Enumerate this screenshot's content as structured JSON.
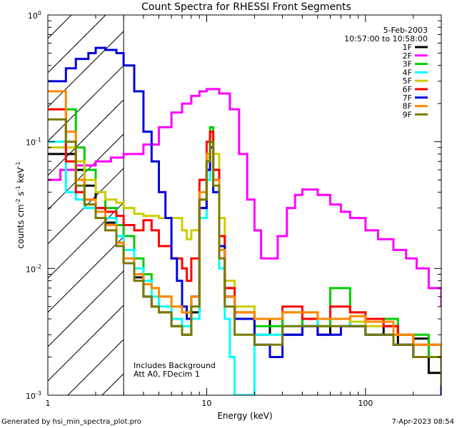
{
  "chart_data": {
    "type": "line",
    "title": "Count Spectra for RHESSI Front Segments",
    "xlabel": "Energy (keV)",
    "ylabel": "counts cm",
    "ylabel_sup1": "-2",
    "ylabel_mid": " s",
    "ylabel_sup2": "-1",
    "ylabel_mid2": " keV",
    "ylabel_sup3": "-1",
    "x_scale": "log",
    "y_scale": "log",
    "xlim": [
      1,
      300
    ],
    "ylim": [
      0.001,
      1
    ],
    "x_ticks": [
      {
        "v": 1,
        "label": "1"
      },
      {
        "v": 10,
        "label": "10"
      },
      {
        "v": 100,
        "label": "100"
      }
    ],
    "y_ticks": [
      {
        "v": 0.001,
        "base": "10",
        "exp": "-3"
      },
      {
        "v": 0.01,
        "base": "10",
        "exp": "-2"
      },
      {
        "v": 0.1,
        "base": "10",
        "exp": "-1"
      },
      {
        "v": 1,
        "base": "10",
        "exp": "0"
      }
    ],
    "legend_date": "5-Feb-2003",
    "legend_time": "10:57:00 to 10:58:00",
    "legend_position": "top-right",
    "note_line1": "Includes Background",
    "note_line2": "Att A0, FDecim 1",
    "shaded_region_xmax": 3,
    "footer_left": "Generated by hsi_min_spectra_plot.pro",
    "footer_right": "7-Apr-2023 08:54",
    "series": [
      {
        "name": "1F",
        "color": "#000000",
        "points": [
          [
            1.0,
            0.08
          ],
          [
            1.3,
            0.08
          ],
          [
            1.5,
            0.06
          ],
          [
            1.7,
            0.045
          ],
          [
            2.0,
            0.03
          ],
          [
            2.3,
            0.023
          ],
          [
            2.7,
            0.016
          ],
          [
            3.0,
            0.011
          ],
          [
            3.5,
            0.0085
          ],
          [
            4.0,
            0.006
          ],
          [
            4.5,
            0.005
          ],
          [
            5.0,
            0.0045
          ],
          [
            6.0,
            0.0035
          ],
          [
            7.0,
            0.003
          ],
          [
            8.0,
            0.0045
          ],
          [
            9.0,
            0.03
          ],
          [
            10.0,
            0.06
          ],
          [
            10.5,
            0.1
          ],
          [
            11.0,
            0.05
          ],
          [
            12.0,
            0.015
          ],
          [
            13.0,
            0.006
          ],
          [
            15.0,
            0.004
          ],
          [
            20.0,
            0.003
          ],
          [
            25.0,
            0.004
          ],
          [
            30.0,
            0.003
          ],
          [
            40.0,
            0.004
          ],
          [
            50.0,
            0.003
          ],
          [
            60.0,
            0.004
          ],
          [
            80.0,
            0.0035
          ],
          [
            100.0,
            0.003
          ],
          [
            130.0,
            0.0035
          ],
          [
            160.0,
            0.0025
          ],
          [
            200.0,
            0.0028
          ],
          [
            250.0,
            0.0015
          ],
          [
            300.0,
            0.001
          ]
        ]
      },
      {
        "name": "2F",
        "color": "#ff00ff",
        "points": [
          [
            1.0,
            0.05
          ],
          [
            1.2,
            0.06
          ],
          [
            1.5,
            0.065
          ],
          [
            2.0,
            0.07
          ],
          [
            2.5,
            0.075
          ],
          [
            3.0,
            0.08
          ],
          [
            4.0,
            0.095
          ],
          [
            5.0,
            0.13
          ],
          [
            6.0,
            0.17
          ],
          [
            7.0,
            0.2
          ],
          [
            8.0,
            0.23
          ],
          [
            9.0,
            0.25
          ],
          [
            10.0,
            0.26
          ],
          [
            11.0,
            0.26
          ],
          [
            12.0,
            0.24
          ],
          [
            14.0,
            0.18
          ],
          [
            16.0,
            0.08
          ],
          [
            18.0,
            0.035
          ],
          [
            20.0,
            0.02
          ],
          [
            22.0,
            0.012
          ],
          [
            25.0,
            0.012
          ],
          [
            28.0,
            0.018
          ],
          [
            32.0,
            0.03
          ],
          [
            36.0,
            0.038
          ],
          [
            40.0,
            0.042
          ],
          [
            50.0,
            0.038
          ],
          [
            60.0,
            0.032
          ],
          [
            70.0,
            0.028
          ],
          [
            80.0,
            0.025
          ],
          [
            100.0,
            0.02
          ],
          [
            120.0,
            0.017
          ],
          [
            150.0,
            0.014
          ],
          [
            180.0,
            0.012
          ],
          [
            210.0,
            0.01
          ],
          [
            250.0,
            0.007
          ],
          [
            300.0,
            0.005
          ]
        ]
      },
      {
        "name": "3F",
        "color": "#00cc00",
        "points": [
          [
            1.0,
            0.18
          ],
          [
            1.3,
            0.18
          ],
          [
            1.5,
            0.09
          ],
          [
            1.7,
            0.06
          ],
          [
            2.0,
            0.04
          ],
          [
            2.3,
            0.03
          ],
          [
            2.7,
            0.022
          ],
          [
            3.0,
            0.018
          ],
          [
            3.5,
            0.012
          ],
          [
            4.0,
            0.009
          ],
          [
            4.5,
            0.007
          ],
          [
            5.0,
            0.006
          ],
          [
            6.0,
            0.005
          ],
          [
            7.0,
            0.0045
          ],
          [
            8.0,
            0.006
          ],
          [
            9.0,
            0.035
          ],
          [
            10.0,
            0.07
          ],
          [
            10.5,
            0.13
          ],
          [
            11.0,
            0.06
          ],
          [
            12.0,
            0.018
          ],
          [
            13.0,
            0.007
          ],
          [
            15.0,
            0.0045
          ],
          [
            20.0,
            0.0035
          ],
          [
            30.0,
            0.0045
          ],
          [
            40.0,
            0.0035
          ],
          [
            60.0,
            0.007
          ],
          [
            80.0,
            0.0045
          ],
          [
            100.0,
            0.004
          ],
          [
            130.0,
            0.004
          ],
          [
            160.0,
            0.003
          ],
          [
            200.0,
            0.003
          ],
          [
            250.0,
            0.002
          ],
          [
            300.0,
            0.0015
          ]
        ]
      },
      {
        "name": "4F",
        "color": "#00ffff",
        "points": [
          [
            1.0,
            0.1
          ],
          [
            1.3,
            0.04
          ],
          [
            1.5,
            0.035
          ],
          [
            1.7,
            0.03
          ],
          [
            2.0,
            0.028
          ],
          [
            2.3,
            0.025
          ],
          [
            2.7,
            0.018
          ],
          [
            3.0,
            0.014
          ],
          [
            3.5,
            0.01
          ],
          [
            4.0,
            0.008
          ],
          [
            4.5,
            0.006
          ],
          [
            5.0,
            0.005
          ],
          [
            6.0,
            0.004
          ],
          [
            7.0,
            0.0035
          ],
          [
            8.0,
            0.004
          ],
          [
            9.0,
            0.025
          ],
          [
            10.0,
            0.05
          ],
          [
            10.5,
            0.09
          ],
          [
            11.0,
            0.04
          ],
          [
            12.0,
            0.01
          ],
          [
            13.0,
            0.004
          ],
          [
            14.0,
            0.002
          ],
          [
            15.0,
            0.001
          ],
          [
            20.0,
            0.003
          ],
          [
            30.0,
            0.0035
          ],
          [
            50.0,
            0.004
          ],
          [
            80.0,
            0.0035
          ],
          [
            100.0,
            0.003
          ],
          [
            150.0,
            0.003
          ],
          [
            200.0,
            0.002
          ],
          [
            300.0,
            0.0012
          ]
        ]
      },
      {
        "name": "5F",
        "color": "#cccc00",
        "points": [
          [
            1.0,
            0.09
          ],
          [
            1.3,
            0.09
          ],
          [
            1.5,
            0.07
          ],
          [
            1.7,
            0.05
          ],
          [
            2.0,
            0.04
          ],
          [
            2.3,
            0.035
          ],
          [
            2.7,
            0.033
          ],
          [
            3.0,
            0.03
          ],
          [
            3.5,
            0.027
          ],
          [
            4.0,
            0.026
          ],
          [
            4.5,
            0.026
          ],
          [
            5.0,
            0.025
          ],
          [
            6.0,
            0.025
          ],
          [
            7.0,
            0.02
          ],
          [
            7.5,
            0.017
          ],
          [
            8.0,
            0.02
          ],
          [
            9.0,
            0.035
          ],
          [
            10.0,
            0.075
          ],
          [
            10.5,
            0.11
          ],
          [
            11.0,
            0.08
          ],
          [
            12.0,
            0.025
          ],
          [
            13.0,
            0.008
          ],
          [
            15.0,
            0.005
          ],
          [
            20.0,
            0.004
          ],
          [
            30.0,
            0.0045
          ],
          [
            50.0,
            0.004
          ],
          [
            80.0,
            0.0038
          ],
          [
            100.0,
            0.0035
          ],
          [
            150.0,
            0.003
          ],
          [
            200.0,
            0.0025
          ],
          [
            300.0,
            0.0015
          ]
        ]
      },
      {
        "name": "6F",
        "color": "#ff0000",
        "points": [
          [
            1.0,
            0.18
          ],
          [
            1.3,
            0.07
          ],
          [
            1.5,
            0.04
          ],
          [
            1.7,
            0.035
          ],
          [
            2.0,
            0.03
          ],
          [
            2.3,
            0.028
          ],
          [
            2.7,
            0.026
          ],
          [
            3.0,
            0.022
          ],
          [
            3.5,
            0.02
          ],
          [
            4.0,
            0.024
          ],
          [
            4.5,
            0.02
          ],
          [
            5.0,
            0.015
          ],
          [
            6.0,
            0.012
          ],
          [
            7.0,
            0.01
          ],
          [
            7.5,
            0.008
          ],
          [
            8.0,
            0.012
          ],
          [
            9.0,
            0.05
          ],
          [
            10.0,
            0.1
          ],
          [
            10.5,
            0.12
          ],
          [
            11.0,
            0.06
          ],
          [
            12.0,
            0.018
          ],
          [
            13.0,
            0.007
          ],
          [
            15.0,
            0.0045
          ],
          [
            20.0,
            0.004
          ],
          [
            30.0,
            0.005
          ],
          [
            40.0,
            0.004
          ],
          [
            60.0,
            0.005
          ],
          [
            80.0,
            0.0045
          ],
          [
            100.0,
            0.004
          ],
          [
            130.0,
            0.0035
          ],
          [
            160.0,
            0.003
          ],
          [
            200.0,
            0.0025
          ],
          [
            300.0,
            0.0015
          ]
        ]
      },
      {
        "name": "7F",
        "color": "#0000dd",
        "points": [
          [
            1.0,
            0.3
          ],
          [
            1.3,
            0.38
          ],
          [
            1.5,
            0.45
          ],
          [
            1.8,
            0.5
          ],
          [
            2.0,
            0.55
          ],
          [
            2.3,
            0.53
          ],
          [
            2.7,
            0.5
          ],
          [
            3.0,
            0.4
          ],
          [
            3.5,
            0.25
          ],
          [
            4.0,
            0.12
          ],
          [
            4.5,
            0.07
          ],
          [
            5.0,
            0.04
          ],
          [
            5.5,
            0.025
          ],
          [
            6.0,
            0.012
          ],
          [
            6.5,
            0.008
          ],
          [
            7.0,
            0.005
          ],
          [
            7.5,
            0.004
          ],
          [
            8.0,
            0.006
          ],
          [
            9.0,
            0.03
          ],
          [
            10.0,
            0.06
          ],
          [
            10.5,
            0.09
          ],
          [
            11.0,
            0.04
          ],
          [
            12.0,
            0.015
          ],
          [
            13.0,
            0.006
          ],
          [
            15.0,
            0.004
          ],
          [
            20.0,
            0.0025
          ],
          [
            25.0,
            0.002
          ],
          [
            30.0,
            0.003
          ],
          [
            40.0,
            0.0035
          ],
          [
            50.0,
            0.003
          ],
          [
            70.0,
            0.0035
          ],
          [
            100.0,
            0.003
          ],
          [
            150.0,
            0.0025
          ],
          [
            200.0,
            0.002
          ],
          [
            300.0,
            0.001
          ]
        ]
      },
      {
        "name": "8F",
        "color": "#ff8800",
        "points": [
          [
            1.0,
            0.25
          ],
          [
            1.3,
            0.12
          ],
          [
            1.5,
            0.05
          ],
          [
            1.7,
            0.035
          ],
          [
            2.0,
            0.028
          ],
          [
            2.3,
            0.022
          ],
          [
            2.7,
            0.016
          ],
          [
            3.0,
            0.012
          ],
          [
            3.5,
            0.009
          ],
          [
            4.0,
            0.0075
          ],
          [
            4.5,
            0.007
          ],
          [
            5.0,
            0.006
          ],
          [
            6.0,
            0.005
          ],
          [
            7.0,
            0.0045
          ],
          [
            8.0,
            0.006
          ],
          [
            9.0,
            0.04
          ],
          [
            10.0,
            0.08
          ],
          [
            10.5,
            0.1
          ],
          [
            11.0,
            0.05
          ],
          [
            12.0,
            0.014
          ],
          [
            13.0,
            0.006
          ],
          [
            15.0,
            0.0045
          ],
          [
            20.0,
            0.004
          ],
          [
            30.0,
            0.0045
          ],
          [
            50.0,
            0.004
          ],
          [
            80.0,
            0.0042
          ],
          [
            100.0,
            0.0038
          ],
          [
            150.0,
            0.003
          ],
          [
            200.0,
            0.0025
          ],
          [
            300.0,
            0.0015
          ]
        ]
      },
      {
        "name": "9F",
        "color": "#7a7a00",
        "points": [
          [
            1.0,
            0.15
          ],
          [
            1.3,
            0.1
          ],
          [
            1.5,
            0.045
          ],
          [
            1.7,
            0.032
          ],
          [
            2.0,
            0.025
          ],
          [
            2.3,
            0.02
          ],
          [
            2.7,
            0.015
          ],
          [
            3.0,
            0.011
          ],
          [
            3.5,
            0.008
          ],
          [
            4.0,
            0.006
          ],
          [
            4.5,
            0.005
          ],
          [
            5.0,
            0.0045
          ],
          [
            6.0,
            0.0035
          ],
          [
            7.0,
            0.003
          ],
          [
            8.0,
            0.005
          ],
          [
            9.0,
            0.035
          ],
          [
            10.0,
            0.07
          ],
          [
            10.5,
            0.1
          ],
          [
            11.0,
            0.045
          ],
          [
            12.0,
            0.012
          ],
          [
            13.0,
            0.005
          ],
          [
            15.0,
            0.003
          ],
          [
            20.0,
            0.0025
          ],
          [
            30.0,
            0.0035
          ],
          [
            50.0,
            0.0035
          ],
          [
            80.0,
            0.0035
          ],
          [
            100.0,
            0.003
          ],
          [
            150.0,
            0.0025
          ],
          [
            200.0,
            0.002
          ],
          [
            300.0,
            0.0012
          ]
        ]
      }
    ]
  }
}
